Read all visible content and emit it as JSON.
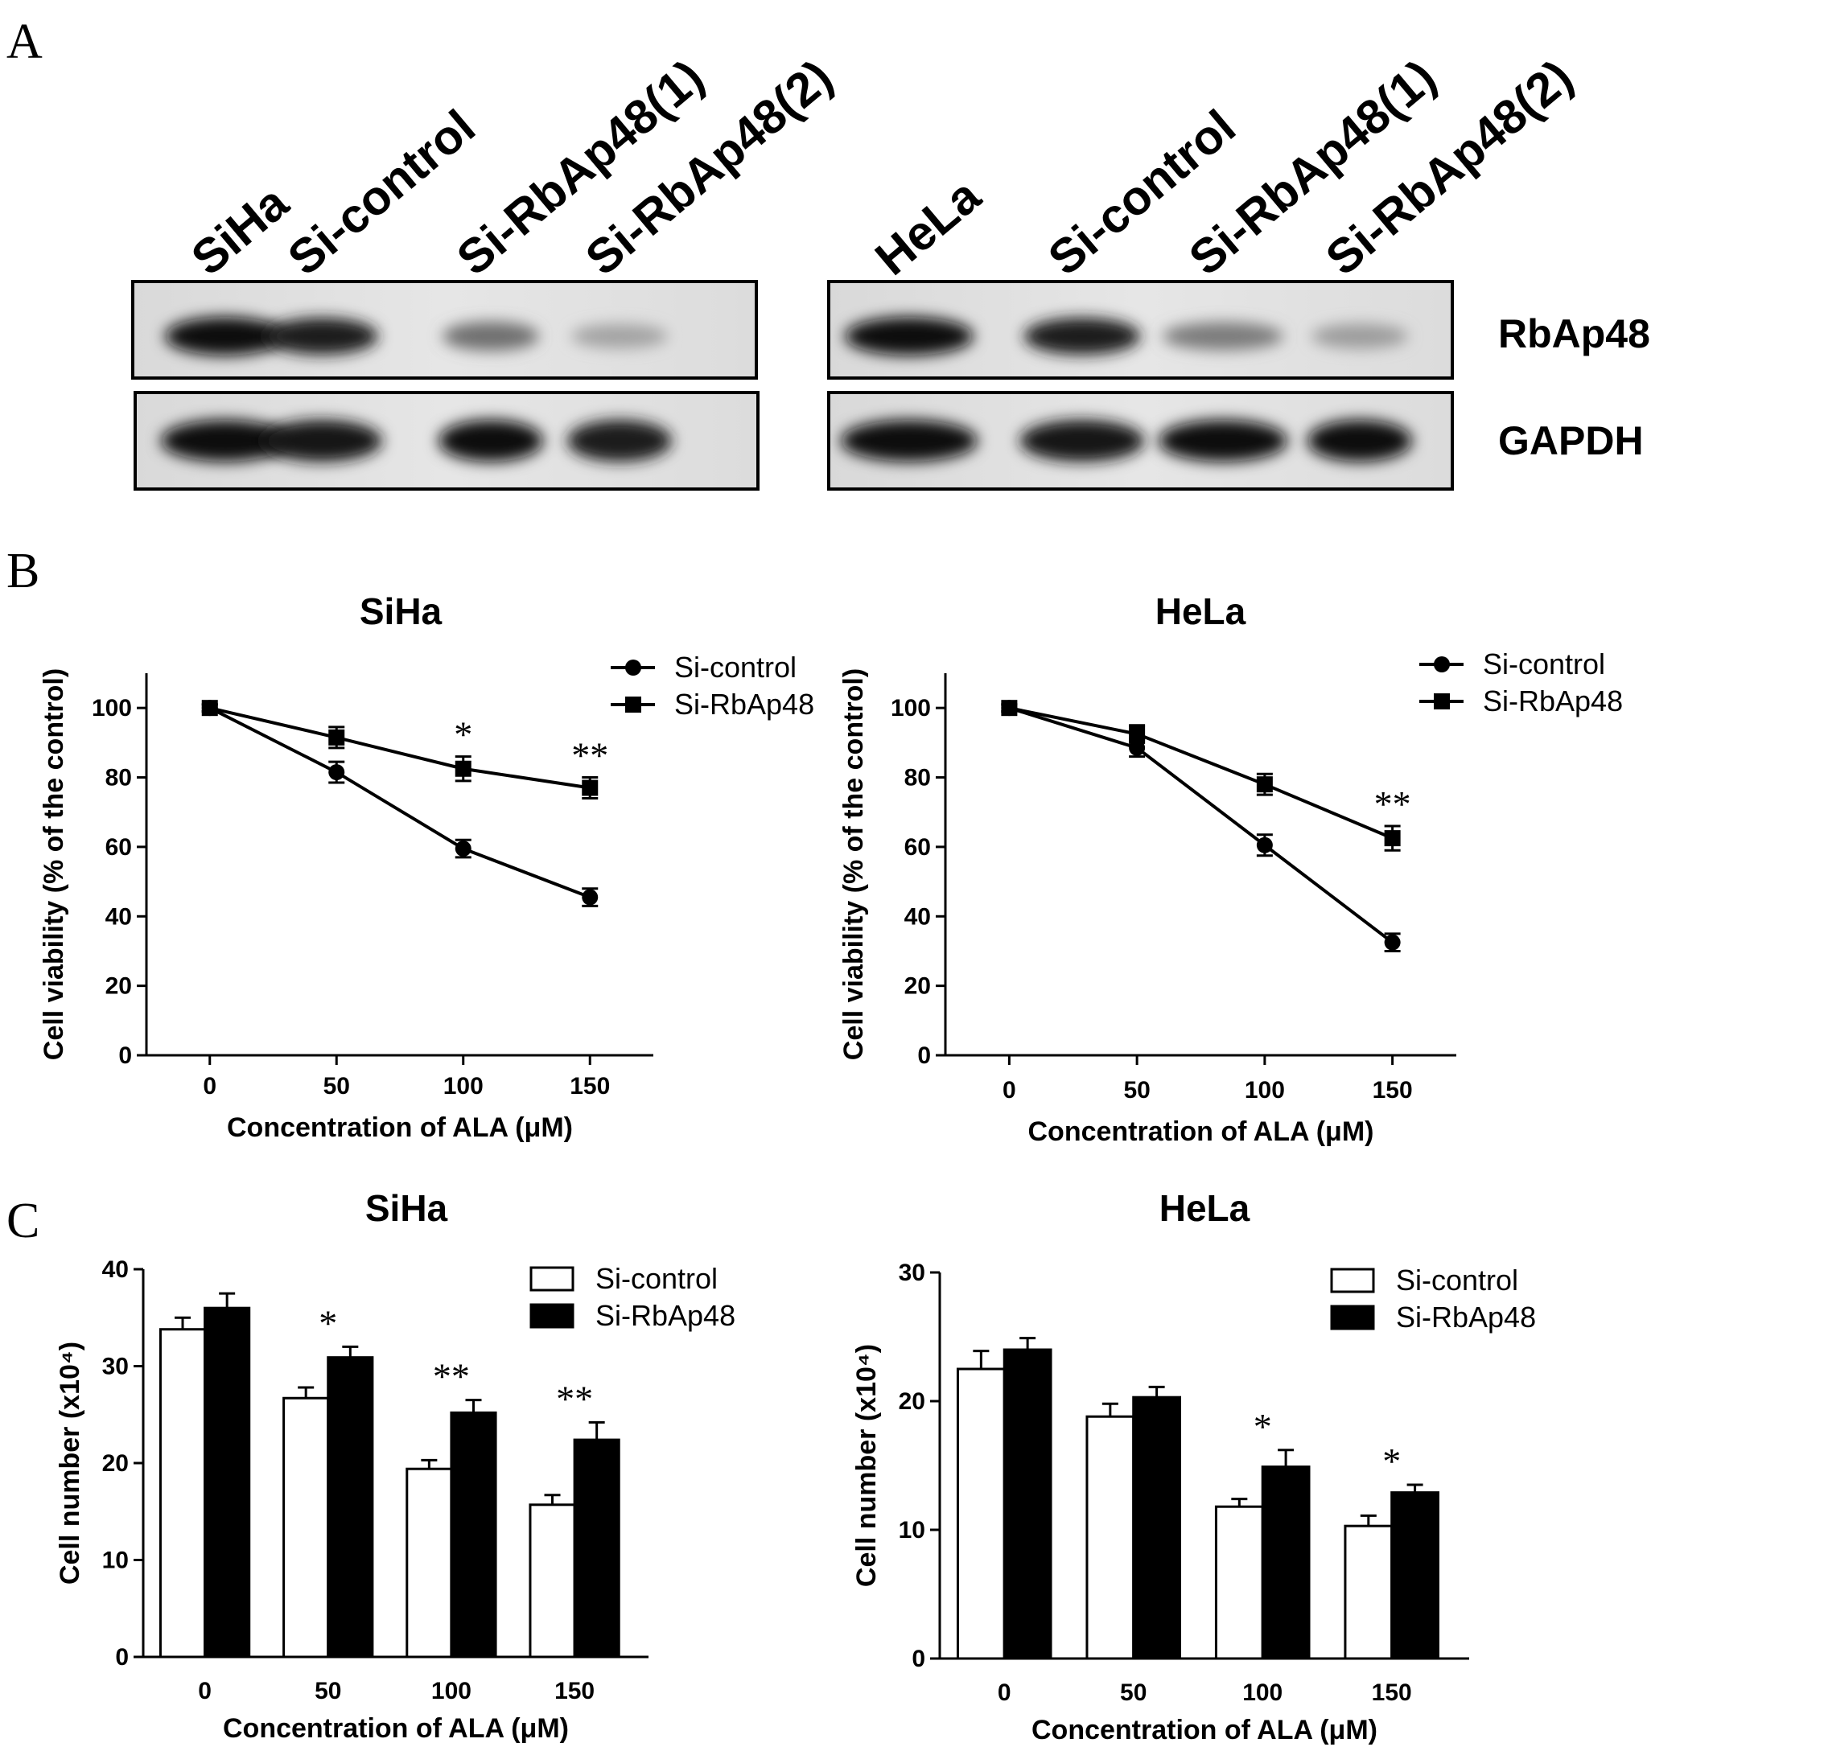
{
  "panel_a": {
    "letter": "A",
    "blots": [
      {
        "lanes": [
          "SiHa",
          "Si-control",
          "Si-RbAp48(1)",
          "Si-RbAp48(2)"
        ],
        "rbap48_intensity": [
          1.0,
          0.92,
          0.55,
          0.32
        ],
        "gapdh_intensity": [
          1.0,
          0.95,
          0.97,
          0.93
        ]
      },
      {
        "lanes": [
          "HeLa",
          "Si-control",
          "Si-RbAp48(1)",
          "Si-RbAp48(2)"
        ],
        "rbap48_intensity": [
          1.0,
          0.92,
          0.5,
          0.35
        ],
        "gapdh_intensity": [
          1.0,
          0.95,
          0.98,
          1.0
        ]
      }
    ],
    "row_labels": [
      "RbAp48",
      "GAPDH"
    ]
  },
  "panel_b": {
    "letter": "B"
  },
  "panel_c": {
    "letter": "C"
  },
  "chart_data": [
    {
      "id": "b-siha",
      "type": "line",
      "title": "SiHa",
      "xlabel": "Concentration of ALA (μM)",
      "ylabel": "Cell viability (% of the control)",
      "x": [
        0,
        50,
        100,
        150
      ],
      "xlim": [
        -25,
        175
      ],
      "ylim": [
        0,
        110
      ],
      "yticks": [
        0,
        20,
        40,
        60,
        80,
        100
      ],
      "legend": "top-right",
      "series": [
        {
          "name": "Si-control",
          "marker": "circle",
          "values": [
            100,
            81.5,
            59.5,
            45.5
          ],
          "errors": [
            1,
            3,
            2.5,
            2.5
          ]
        },
        {
          "name": "Si-RbAp48",
          "marker": "square",
          "values": [
            100,
            91.5,
            82.5,
            77
          ],
          "errors": [
            1,
            3,
            3.5,
            3
          ]
        }
      ],
      "annotations": [
        {
          "x": 100,
          "text": "*"
        },
        {
          "x": 150,
          "text": "**"
        }
      ]
    },
    {
      "id": "b-hela",
      "type": "line",
      "title": "HeLa",
      "xlabel": "Concentration of ALA (μM)",
      "ylabel": "Cell viability (% of the control)",
      "x": [
        0,
        50,
        100,
        150
      ],
      "xlim": [
        -25,
        175
      ],
      "ylim": [
        0,
        110
      ],
      "yticks": [
        0,
        20,
        40,
        60,
        80,
        100
      ],
      "legend": "top-right",
      "series": [
        {
          "name": "Si-control",
          "marker": "circle",
          "values": [
            100,
            88.5,
            60.5,
            32.5
          ],
          "errors": [
            1,
            2.5,
            3,
            2.5
          ]
        },
        {
          "name": "Si-RbAp48",
          "marker": "square",
          "values": [
            100,
            92.5,
            78,
            62.5
          ],
          "errors": [
            1,
            2.5,
            3,
            3.5
          ]
        }
      ],
      "annotations": [
        {
          "x": 150,
          "text": "**"
        }
      ]
    },
    {
      "id": "c-siha",
      "type": "bar",
      "title": "SiHa",
      "xlabel": "Concentration of ALA (μM)",
      "ylabel": "Cell number (x10⁴)",
      "categories": [
        "0",
        "50",
        "100",
        "150"
      ],
      "ylim": [
        0,
        40
      ],
      "yticks": [
        0,
        10,
        20,
        30,
        40
      ],
      "legend": "top-right",
      "series": [
        {
          "name": "Si-control",
          "fill": "white",
          "values": [
            33.8,
            26.7,
            19.4,
            15.7
          ],
          "errors": [
            1.2,
            1.1,
            0.9,
            1.0
          ]
        },
        {
          "name": "Si-RbAp48",
          "fill": "black",
          "values": [
            36.0,
            30.9,
            25.2,
            22.4
          ],
          "errors": [
            1.5,
            1.1,
            1.3,
            1.8
          ]
        }
      ],
      "annotations": [
        {
          "category": "50",
          "text": "*"
        },
        {
          "category": "100",
          "text": "**"
        },
        {
          "category": "150",
          "text": "**"
        }
      ]
    },
    {
      "id": "c-hela",
      "type": "bar",
      "title": "HeLa",
      "xlabel": "Concentration of ALA (μM)",
      "ylabel": "Cell number (x10⁴)",
      "categories": [
        "0",
        "50",
        "100",
        "150"
      ],
      "ylim": [
        0,
        30
      ],
      "yticks": [
        0,
        10,
        20,
        30
      ],
      "legend": "top-right",
      "series": [
        {
          "name": "Si-control",
          "fill": "white",
          "values": [
            22.5,
            18.8,
            11.8,
            10.3
          ],
          "errors": [
            1.4,
            1.0,
            0.6,
            0.8
          ]
        },
        {
          "name": "Si-RbAp48",
          "fill": "black",
          "values": [
            24.0,
            20.3,
            14.9,
            12.9
          ],
          "errors": [
            0.9,
            0.8,
            1.3,
            0.6
          ]
        }
      ],
      "annotations": [
        {
          "category": "100",
          "text": "*"
        },
        {
          "category": "150",
          "text": "*"
        }
      ]
    }
  ]
}
